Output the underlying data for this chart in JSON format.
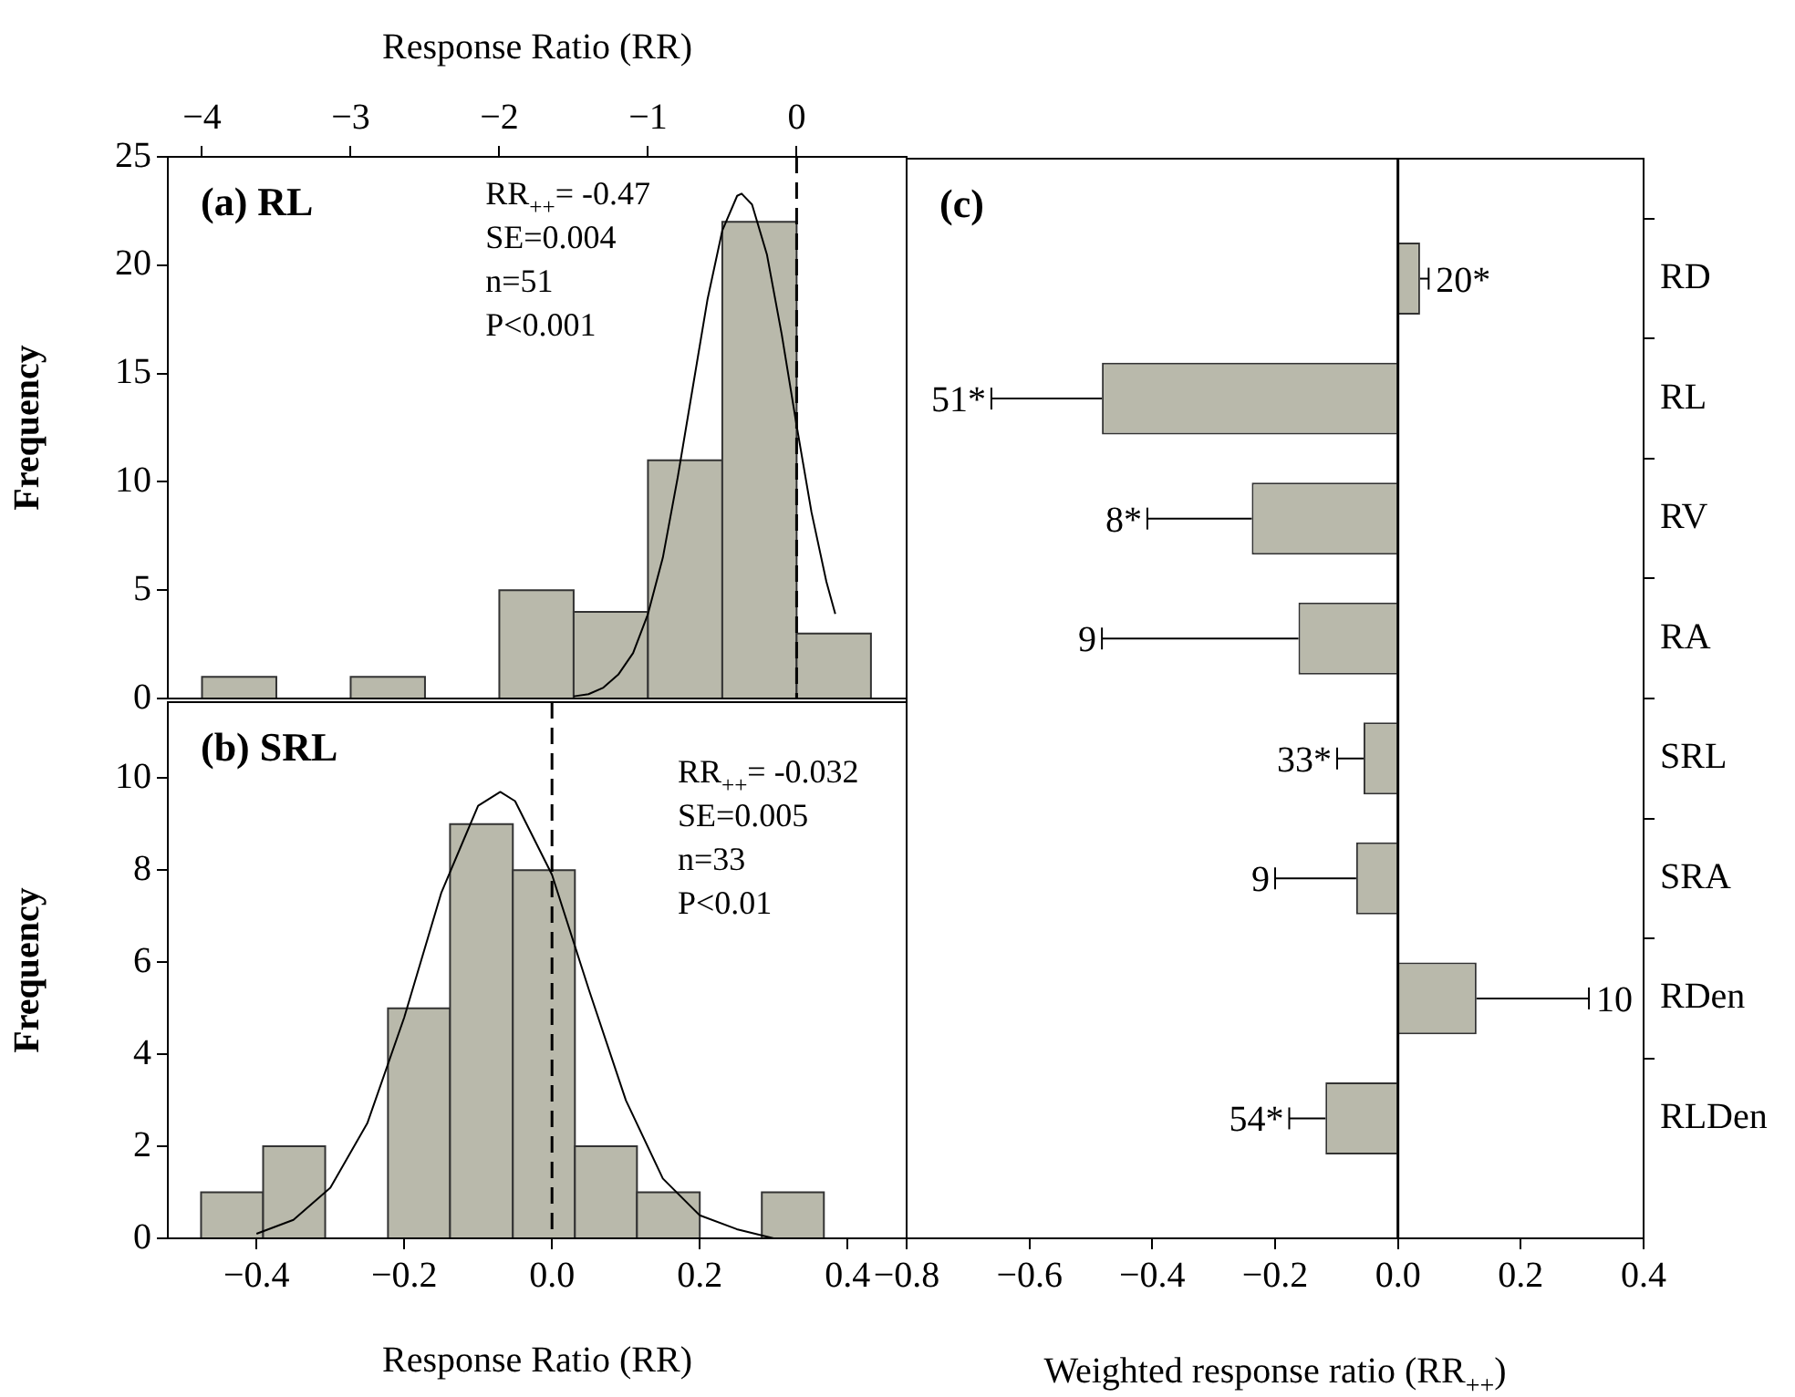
{
  "chart_data": [
    {
      "type": "histogram",
      "title": "(a) RL",
      "xlabel": "Response Ratio (RR)",
      "ylabel": "Frequency",
      "bins": [
        -4,
        -3.5,
        -3,
        -2.5,
        -2,
        -1.5,
        -1,
        -0.5,
        0,
        0.5
      ],
      "values": [
        1,
        0,
        1,
        0,
        5,
        4,
        11,
        22,
        3
      ],
      "color": "#b9b9ab",
      "xlim": [
        -4.23,
        0.74
      ],
      "xticks": [
        {
          "value": -4,
          "label": "−4"
        },
        {
          "value": -3,
          "label": "−3"
        },
        {
          "value": -2,
          "label": "−2"
        },
        {
          "value": -1,
          "label": "−1"
        },
        0
      ],
      "ylim": [
        0,
        25
      ],
      "yticks": [
        0,
        5,
        10,
        15,
        20,
        25
      ],
      "series": [
        {
          "type": "line",
          "color": "#000000",
          "x": [
            -1.5,
            -1.4,
            -1.3,
            -1.2,
            -1.1,
            -1.0,
            -0.9,
            -0.8,
            -0.7,
            -0.6,
            -0.5,
            -0.4,
            -0.37,
            -0.3,
            -0.2,
            -0.1,
            0,
            0.1,
            0.2,
            0.26
          ],
          "values": [
            0.1,
            0.2,
            0.5,
            1.1,
            2.1,
            3.9,
            6.5,
            10.2,
            14.3,
            18.4,
            21.6,
            23.2,
            23.3,
            22.8,
            20.5,
            16.8,
            12.6,
            8.6,
            5.4,
            3.9
          ]
        }
      ],
      "ref_lines": [
        {
          "axis": "x",
          "value": 0,
          "line_style": "dashed",
          "color": "#000000"
        }
      ],
      "annotations": [
        "RR$_{++}$= -0.47",
        "SE=0.004",
        "n=51",
        "P<0.001"
      ]
    },
    {
      "type": "histogram",
      "title": "(b) SRL",
      "xlabel": "Response Ratio (RR)",
      "ylabel": "Frequency",
      "bins": [
        -0.475,
        -0.391,
        -0.307,
        -0.222,
        -0.138,
        -0.053,
        0.031,
        0.115,
        0.2,
        0.284,
        0.368
      ],
      "values": [
        1,
        2,
        0,
        5,
        9,
        8,
        2,
        1,
        0,
        1
      ],
      "color": "#b9b9ab",
      "xlim": [
        -0.52,
        0.48
      ],
      "xticks": [
        {
          "value": -0.4,
          "label": "−0.4"
        },
        {
          "value": -0.2,
          "label": "−0.2"
        },
        {
          "value": 0,
          "label": "0.0"
        },
        0.2,
        0.4
      ],
      "ylim": [
        0,
        11.65
      ],
      "yticks": [
        0,
        2,
        4,
        6,
        8,
        10
      ],
      "series": [
        {
          "type": "line",
          "color": "#000000",
          "x": [
            -0.4,
            -0.35,
            -0.3,
            -0.25,
            -0.2,
            -0.15,
            -0.1,
            -0.07,
            -0.05,
            0,
            0.05,
            0.1,
            0.15,
            0.2,
            0.25,
            0.3
          ],
          "values": [
            0.1,
            0.4,
            1.1,
            2.5,
            4.8,
            7.5,
            9.4,
            9.7,
            9.5,
            7.9,
            5.4,
            3.0,
            1.3,
            0.5,
            0.2,
            0.0
          ]
        }
      ],
      "ref_lines": [
        {
          "axis": "x",
          "value": 0,
          "line_style": "dashed",
          "color": "#000000"
        }
      ],
      "annotations": [
        "RR$_{++}$= -0.032",
        "SE=0.005",
        "n=33",
        "P<0.01"
      ]
    },
    {
      "type": "bar",
      "orientation": "horizontal",
      "title": "(c)",
      "xlabel": "Weighted response ratio (RR$_{++}$)",
      "categories": [
        "RD",
        "RL",
        "RV",
        "RA",
        "SRL",
        "SRA",
        "RDen",
        "RLDen"
      ],
      "values": [
        0.036,
        -0.482,
        -0.238,
        -0.162,
        -0.056,
        -0.068,
        0.128,
        -0.118
      ],
      "errors": [
        [
          0.036,
          0.05
        ],
        [
          -0.662,
          -0.482
        ],
        [
          -0.408,
          -0.238
        ],
        [
          -0.482,
          -0.162
        ],
        [
          -0.099,
          -0.056
        ],
        [
          -0.2,
          -0.068
        ],
        [
          0.128,
          0.311
        ],
        [
          -0.177,
          -0.118
        ]
      ],
      "annotations": [
        {
          "text": "20*",
          "x": 0.05,
          "y": "RD"
        },
        {
          "text": "51*",
          "x": -0.662,
          "y": "RL"
        },
        {
          "text": "8*",
          "x": -0.408,
          "y": "RV"
        },
        {
          "text": "9",
          "x": -0.482,
          "y": "RA"
        },
        {
          "text": "33*",
          "x": -0.099,
          "y": "SRL"
        },
        {
          "text": "9",
          "x": -0.2,
          "y": "SRA"
        },
        {
          "text": "10",
          "x": 0.311,
          "y": "RDen"
        },
        {
          "text": "54*",
          "x": -0.177,
          "y": "RLDen"
        }
      ],
      "color": "#b9b9ab",
      "xlim": [
        -0.8,
        0.4
      ],
      "xticks": [
        {
          "value": -0.8,
          "label": "−0.8"
        },
        {
          "value": -0.6,
          "label": "−0.6"
        },
        {
          "value": -0.4,
          "label": "−0.4"
        },
        {
          "value": -0.2,
          "label": "−0.2"
        },
        {
          "value": 0,
          "label": "0.0"
        },
        0.2,
        0.4
      ],
      "ref_lines": [
        {
          "axis": "x",
          "value": 0,
          "line_style": "solid",
          "color": "#000000"
        }
      ]
    }
  ]
}
